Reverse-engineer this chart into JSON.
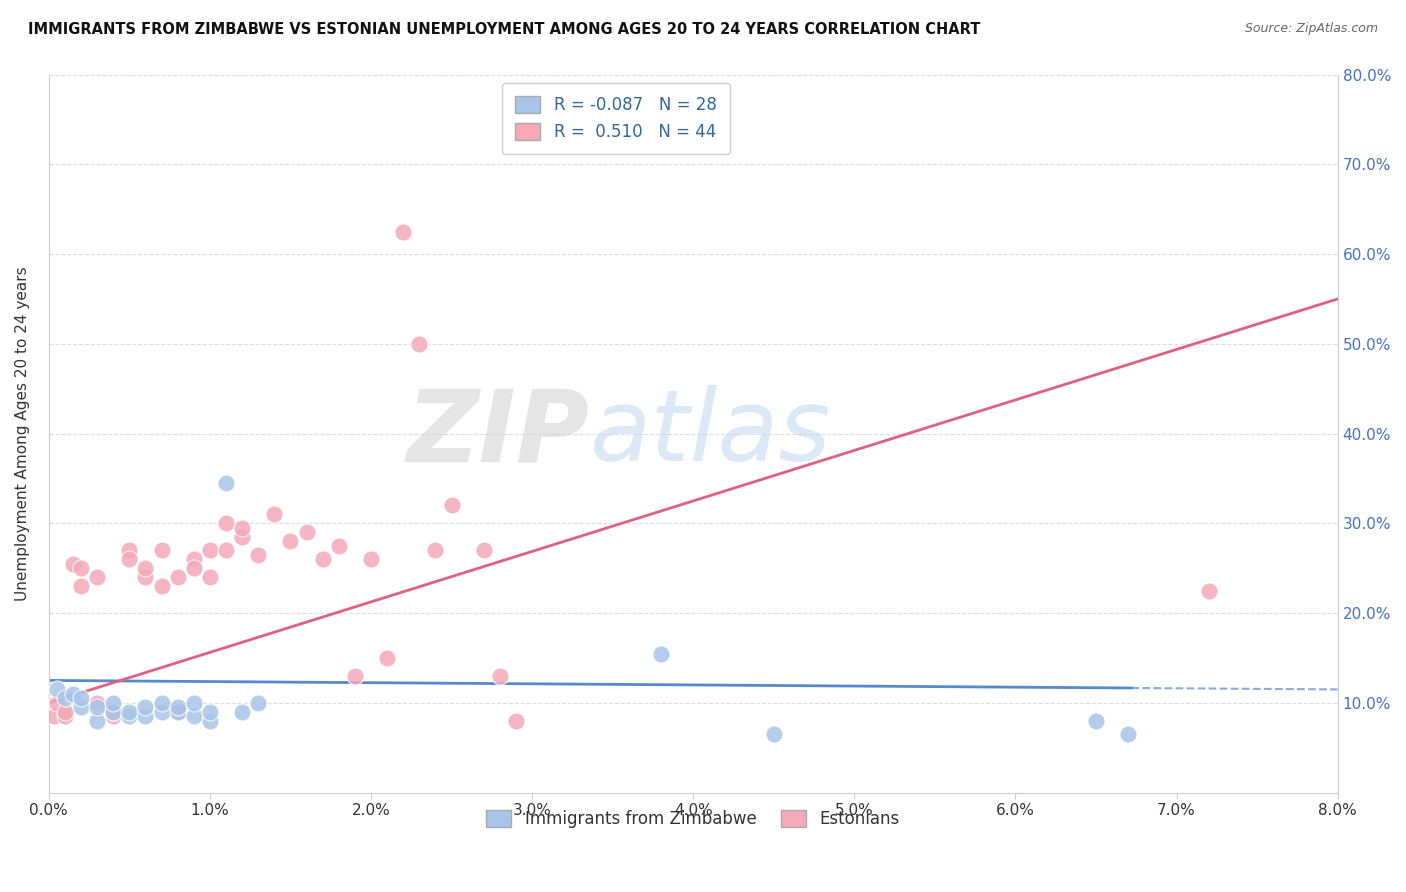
{
  "title": "IMMIGRANTS FROM ZIMBABWE VS ESTONIAN UNEMPLOYMENT AMONG AGES 20 TO 24 YEARS CORRELATION CHART",
  "source": "Source: ZipAtlas.com",
  "ylabel": "Unemployment Among Ages 20 to 24 years",
  "xlim": [
    0.0,
    0.08
  ],
  "ylim": [
    0.0,
    0.8
  ],
  "xticks": [
    0.0,
    0.01,
    0.02,
    0.03,
    0.04,
    0.05,
    0.06,
    0.07,
    0.08
  ],
  "xticklabels": [
    "0.0%",
    "1.0%",
    "2.0%",
    "3.0%",
    "4.0%",
    "5.0%",
    "6.0%",
    "7.0%",
    "8.0%"
  ],
  "yticks": [
    0.0,
    0.1,
    0.2,
    0.3,
    0.4,
    0.5,
    0.6,
    0.7,
    0.8
  ],
  "yticklabels_right": [
    "",
    "10.0%",
    "20.0%",
    "30.0%",
    "40.0%",
    "50.0%",
    "60.0%",
    "70.0%",
    "80.0%"
  ],
  "blue_label": "Immigrants from Zimbabwe",
  "pink_label": "Estonians",
  "blue_R": -0.087,
  "blue_N": 28,
  "pink_R": 0.51,
  "pink_N": 44,
  "blue_color": "#a8c4e8",
  "pink_color": "#f4a8b8",
  "blue_line_color": "#5588cc",
  "pink_line_color": "#e06080",
  "watermark_zip": "ZIP",
  "watermark_atlas": "atlas",
  "background_color": "#ffffff",
  "grid_color": "#dddddd",
  "blue_scatter_x": [
    0.0005,
    0.001,
    0.0015,
    0.002,
    0.002,
    0.003,
    0.003,
    0.004,
    0.004,
    0.005,
    0.005,
    0.006,
    0.006,
    0.007,
    0.007,
    0.008,
    0.008,
    0.009,
    0.009,
    0.01,
    0.01,
    0.011,
    0.012,
    0.013,
    0.038,
    0.045,
    0.065,
    0.067
  ],
  "blue_scatter_y": [
    0.115,
    0.105,
    0.11,
    0.095,
    0.105,
    0.08,
    0.095,
    0.09,
    0.1,
    0.085,
    0.09,
    0.085,
    0.095,
    0.09,
    0.1,
    0.09,
    0.095,
    0.085,
    0.1,
    0.08,
    0.09,
    0.345,
    0.09,
    0.1,
    0.155,
    0.065,
    0.08,
    0.065
  ],
  "pink_scatter_x": [
    0.0003,
    0.0005,
    0.001,
    0.001,
    0.0015,
    0.002,
    0.002,
    0.003,
    0.003,
    0.004,
    0.004,
    0.005,
    0.005,
    0.006,
    0.006,
    0.007,
    0.007,
    0.008,
    0.008,
    0.009,
    0.009,
    0.01,
    0.01,
    0.011,
    0.011,
    0.012,
    0.012,
    0.013,
    0.014,
    0.015,
    0.016,
    0.017,
    0.018,
    0.019,
    0.02,
    0.021,
    0.022,
    0.023,
    0.024,
    0.025,
    0.027,
    0.028,
    0.029,
    0.072
  ],
  "pink_scatter_y": [
    0.085,
    0.1,
    0.085,
    0.09,
    0.255,
    0.23,
    0.25,
    0.1,
    0.24,
    0.085,
    0.09,
    0.27,
    0.26,
    0.24,
    0.25,
    0.23,
    0.27,
    0.09,
    0.24,
    0.26,
    0.25,
    0.27,
    0.24,
    0.3,
    0.27,
    0.285,
    0.295,
    0.265,
    0.31,
    0.28,
    0.29,
    0.26,
    0.275,
    0.13,
    0.26,
    0.15,
    0.625,
    0.5,
    0.27,
    0.32,
    0.27,
    0.13,
    0.08,
    0.225
  ],
  "blue_trend_x0": 0.0,
  "blue_trend_y0": 0.125,
  "blue_trend_x1": 0.08,
  "blue_trend_y1": 0.115,
  "pink_trend_x0": 0.0,
  "pink_trend_y0": 0.1,
  "pink_trend_x1": 0.08,
  "pink_trend_y1": 0.55
}
